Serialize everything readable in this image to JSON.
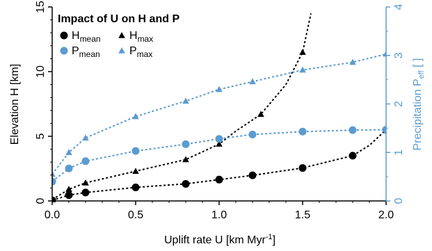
{
  "chart_data": {
    "type": "line",
    "title": "Impact of U on H and P",
    "xlabel": "Uplift rate U [km Myr",
    "xlabel_sup": "-1",
    "xlabel_suffix": "]",
    "ylabel": "Elevation  H [km]",
    "y2label": "Precipitation  P",
    "y2label_sub": "eff",
    "y2label_suffix": " [ ]",
    "xlim": [
      0,
      2.0
    ],
    "ylim": [
      0,
      15
    ],
    "y2lim": [
      0,
      4
    ],
    "x_ticks": [
      0.0,
      0.5,
      1.0,
      1.5,
      2.0
    ],
    "x_tick_labels": [
      "0.0",
      "0.5",
      "1.0",
      "1.5",
      "2.0"
    ],
    "y_ticks": [
      0,
      5,
      10,
      15
    ],
    "y_tick_labels": [
      "0",
      "5",
      "10",
      "15"
    ],
    "y2_ticks": [
      0,
      1,
      2,
      3,
      4
    ],
    "y2_tick_labels": [
      "0",
      "1",
      "2",
      "3",
      "4"
    ],
    "colors": {
      "H": "#000000",
      "P": "#5b9bd0"
    },
    "legend_placement": "top-left",
    "series": [
      {
        "name": "H",
        "sub": "mean",
        "axis": "left",
        "marker": "circle",
        "color": "#000000",
        "x": [
          0.0,
          0.1,
          0.2,
          0.5,
          0.8,
          1.0,
          1.2,
          1.5,
          1.8,
          2.0
        ],
        "y": [
          0.05,
          0.45,
          0.65,
          1.05,
          1.32,
          1.65,
          1.98,
          2.55,
          3.5,
          5.5
        ],
        "curve": [
          [
            0.0,
            0.05
          ],
          [
            0.1,
            0.45
          ],
          [
            0.2,
            0.65
          ],
          [
            0.5,
            1.05
          ],
          [
            0.8,
            1.32
          ],
          [
            1.0,
            1.65
          ],
          [
            1.2,
            1.98
          ],
          [
            1.5,
            2.55
          ],
          [
            1.8,
            3.5
          ],
          [
            1.9,
            4.3
          ],
          [
            2.0,
            5.5
          ]
        ]
      },
      {
        "name": "H",
        "sub": "max",
        "axis": "left",
        "marker": "triangle",
        "color": "#000000",
        "x": [
          0.0,
          0.1,
          0.2,
          0.5,
          0.8,
          1.0,
          1.25,
          1.5
        ],
        "y": [
          0.1,
          0.9,
          1.4,
          2.3,
          3.2,
          4.4,
          6.7,
          11.5
        ],
        "curve": [
          [
            0.0,
            0.1
          ],
          [
            0.1,
            0.9
          ],
          [
            0.2,
            1.4
          ],
          [
            0.5,
            2.3
          ],
          [
            0.8,
            3.2
          ],
          [
            1.0,
            4.4
          ],
          [
            1.1,
            5.4
          ],
          [
            1.25,
            6.7
          ],
          [
            1.4,
            9.0
          ],
          [
            1.5,
            11.5
          ],
          [
            1.55,
            14.5
          ]
        ]
      },
      {
        "name": "P",
        "sub": "mean",
        "axis": "right",
        "marker": "circle",
        "color": "#5b9bd0",
        "x": [
          0.0,
          0.1,
          0.2,
          0.5,
          0.8,
          1.0,
          1.2,
          1.5,
          1.8,
          2.0
        ],
        "y": [
          0.4,
          0.67,
          0.82,
          1.03,
          1.17,
          1.28,
          1.37,
          1.43,
          1.46,
          1.47
        ],
        "curve": [
          [
            0.0,
            0.4
          ],
          [
            0.1,
            0.67
          ],
          [
            0.2,
            0.82
          ],
          [
            0.5,
            1.03
          ],
          [
            0.8,
            1.17
          ],
          [
            1.0,
            1.28
          ],
          [
            1.2,
            1.37
          ],
          [
            1.5,
            1.43
          ],
          [
            1.8,
            1.46
          ],
          [
            2.0,
            1.47
          ]
        ]
      },
      {
        "name": "P",
        "sub": "max",
        "axis": "right",
        "marker": "triangle",
        "color": "#5b9bd0",
        "x": [
          0.0,
          0.1,
          0.2,
          0.5,
          0.8,
          1.0,
          1.2,
          1.5,
          1.8,
          2.0
        ],
        "y": [
          0.55,
          1.0,
          1.3,
          1.74,
          2.06,
          2.3,
          2.46,
          2.7,
          2.86,
          3.03
        ],
        "curve": [
          [
            0.0,
            0.55
          ],
          [
            0.1,
            1.0
          ],
          [
            0.2,
            1.3
          ],
          [
            0.5,
            1.74
          ],
          [
            0.8,
            2.06
          ],
          [
            1.0,
            2.3
          ],
          [
            1.2,
            2.46
          ],
          [
            1.5,
            2.7
          ],
          [
            1.8,
            2.86
          ],
          [
            2.0,
            3.03
          ]
        ]
      }
    ]
  }
}
